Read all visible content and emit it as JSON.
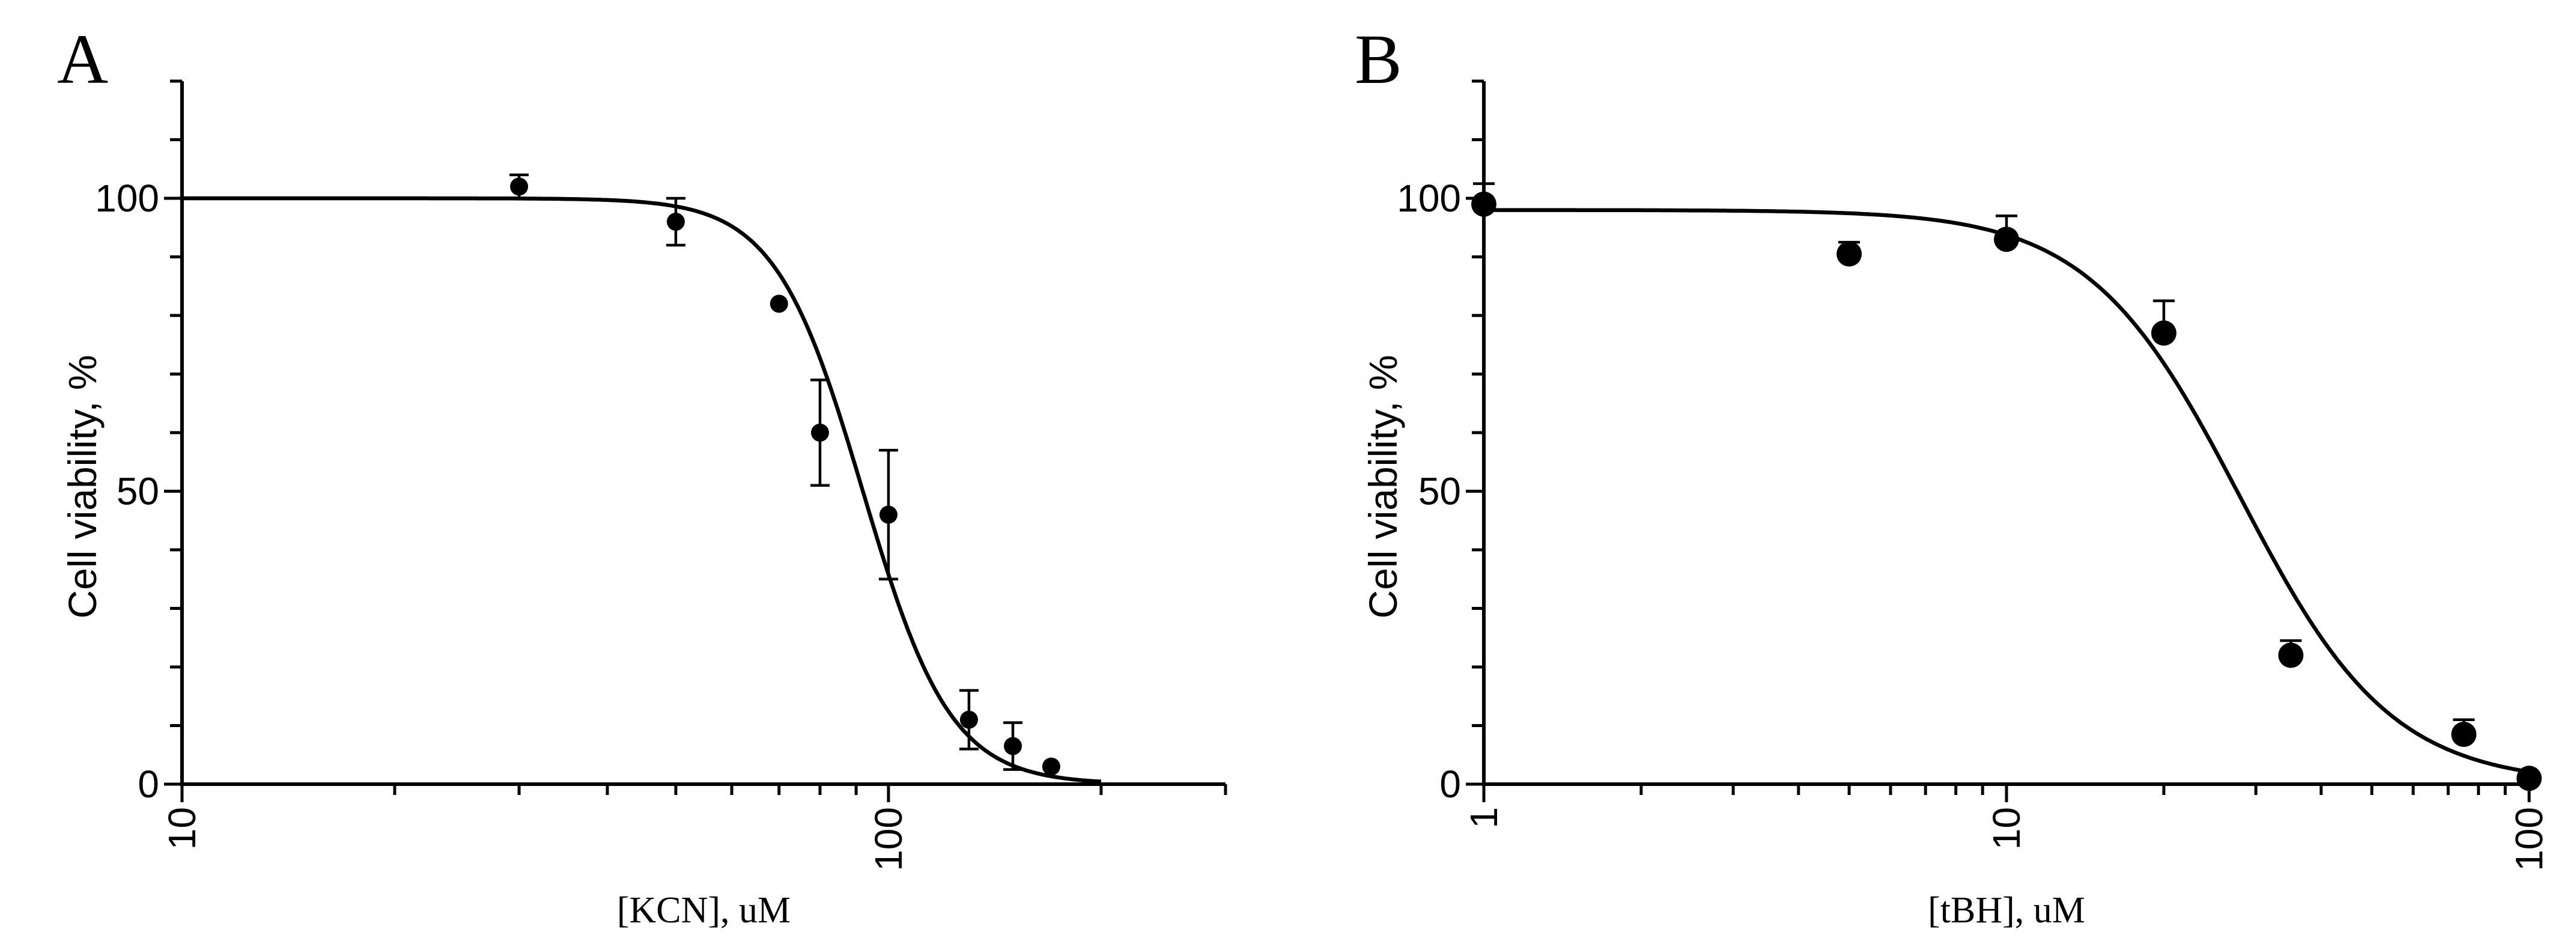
{
  "chart_data": [
    {
      "type": "scatter",
      "panel": "A",
      "xscale": "log",
      "xlim": [
        10,
        300
      ],
      "ylim": [
        0,
        120
      ],
      "xticks": [
        {
          "value": 10,
          "label": "10"
        },
        {
          "value": 100,
          "label": "100"
        }
      ],
      "yticks": [
        {
          "value": 0,
          "label": "0"
        },
        {
          "value": 50,
          "label": "50"
        },
        {
          "value": 100,
          "label": "100"
        }
      ],
      "ylabel": "Cell viability, %",
      "xlabel": "[KCN], uM",
      "points": [
        {
          "x": 30,
          "y": 102,
          "err": 2
        },
        {
          "x": 50,
          "y": 96,
          "err": 4
        },
        {
          "x": 70,
          "y": 82,
          "err": 0
        },
        {
          "x": 80,
          "y": 60,
          "err": 9
        },
        {
          "x": 100,
          "y": 46,
          "err": 11
        },
        {
          "x": 130,
          "y": 11,
          "err": 5
        },
        {
          "x": 150,
          "y": 6.5,
          "err": 4
        },
        {
          "x": 170,
          "y": 3,
          "err": 0
        }
      ],
      "fit": {
        "model": "four-parameter logistic",
        "top": 100,
        "bottom": 0,
        "ic50": 92,
        "hill": 7
      }
    },
    {
      "type": "scatter",
      "panel": "B",
      "xscale": "log",
      "xlim": [
        1,
        100
      ],
      "ylim": [
        0,
        120
      ],
      "xticks": [
        {
          "value": 1,
          "label": "1"
        },
        {
          "value": 10,
          "label": "10"
        },
        {
          "value": 100,
          "label": "100"
        }
      ],
      "yticks": [
        {
          "value": 0,
          "label": "0"
        },
        {
          "value": 50,
          "label": "50"
        },
        {
          "value": 100,
          "label": "100"
        }
      ],
      "ylabel": "Cell viability, %",
      "xlabel": "[tBH], uM",
      "points": [
        {
          "x": 1,
          "y": 99,
          "err": 3.5
        },
        {
          "x": 5,
          "y": 90.5,
          "err": 2
        },
        {
          "x": 10,
          "y": 93,
          "err": 4
        },
        {
          "x": 20,
          "y": 77,
          "err": 5.5
        },
        {
          "x": 35,
          "y": 22,
          "err": 2.5
        },
        {
          "x": 75,
          "y": 8.5,
          "err": 2.5
        },
        {
          "x": 100,
          "y": 1,
          "err": 0
        }
      ],
      "fit": {
        "model": "four-parameter logistic",
        "top": 98,
        "bottom": 0,
        "ic50": 28,
        "hill": 3
      }
    }
  ]
}
